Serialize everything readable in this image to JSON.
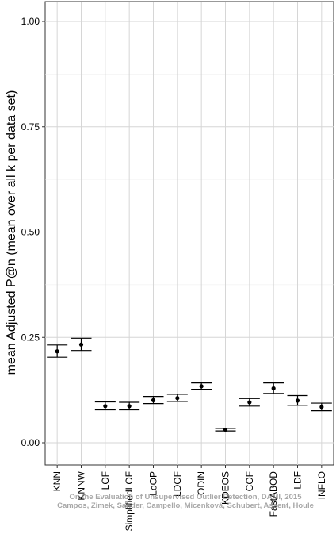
{
  "chart_data": {
    "type": "errorbar",
    "title": "",
    "xlabel": "",
    "ylabel": "mean Adjusted P@n (mean over all k per data set)",
    "ylim": [
      0,
      1
    ],
    "yticks": [
      "0.00",
      "0.25",
      "0.50",
      "0.75",
      "1.00"
    ],
    "grid": true,
    "categories": [
      "KNN",
      "KNNW",
      "LOF",
      "SimplifiedLOF",
      "LoOP",
      "LDOF",
      "ODIN",
      "KDEOS",
      "COF",
      "FastABOD",
      "LDF",
      "INFLO"
    ],
    "series": [
      {
        "mean": [
          0.217,
          0.233,
          0.087,
          0.087,
          0.101,
          0.106,
          0.134,
          0.031,
          0.096,
          0.129,
          0.1,
          0.085
        ],
        "upper": [
          0.232,
          0.248,
          0.097,
          0.096,
          0.11,
          0.115,
          0.142,
          0.034,
          0.105,
          0.142,
          0.112,
          0.094
        ],
        "lower": [
          0.203,
          0.219,
          0.078,
          0.078,
          0.093,
          0.098,
          0.127,
          0.028,
          0.087,
          0.117,
          0.089,
          0.076
        ]
      }
    ]
  },
  "watermark": {
    "line1": "On the Evaluation of Unsupervised Outlier Detection, DAMI, 2015",
    "line2": "Campos, Zimek, Sander, Campello, Micenková, Schubert, Assent, Houle"
  }
}
